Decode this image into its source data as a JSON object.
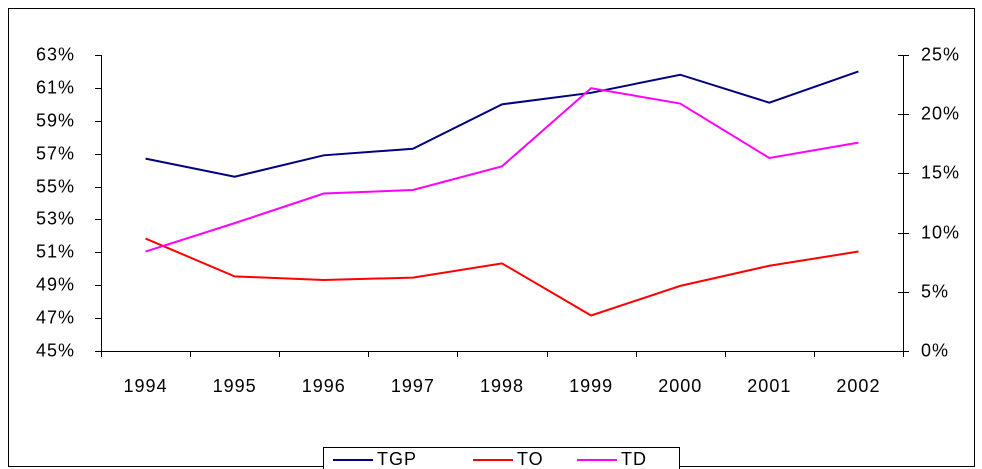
{
  "chart_data": {
    "type": "line",
    "categories": [
      "1994",
      "1995",
      "1996",
      "1997",
      "1998",
      "1999",
      "2000",
      "2001",
      "2002"
    ],
    "series": [
      {
        "name": "TGP",
        "color": "#000080",
        "values": [
          56.7,
          55.6,
          56.9,
          57.3,
          60.0,
          60.7,
          61.8,
          60.1,
          62.0
        ]
      },
      {
        "name": "TO",
        "color": "#ff0000",
        "axis": "y2",
        "values": [
          9.5,
          6.3,
          6.0,
          6.2,
          7.4,
          3.0,
          5.5,
          7.2,
          8.4
        ]
      },
      {
        "name": "TD",
        "color": "#ff00ff",
        "axis": "y2",
        "values": [
          8.4,
          10.8,
          13.3,
          13.6,
          15.6,
          22.2,
          20.9,
          16.3,
          17.6
        ]
      }
    ],
    "ylim": [
      45,
      63
    ],
    "yticks": [
      {
        "value": 45,
        "label": "45%"
      },
      {
        "value": 47,
        "label": "47%"
      },
      {
        "value": 49,
        "label": "49%"
      },
      {
        "value": 51,
        "label": "51%"
      },
      {
        "value": 53,
        "label": "53%"
      },
      {
        "value": 55,
        "label": "55%"
      },
      {
        "value": 57,
        "label": "57%"
      },
      {
        "value": 59,
        "label": "59%"
      },
      {
        "value": 61,
        "label": "61%"
      },
      {
        "value": 63,
        "label": "63%"
      }
    ],
    "y2lim": [
      0,
      25
    ],
    "y2ticks": [
      {
        "value": 0,
        "label": "0%"
      },
      {
        "value": 5,
        "label": "5%"
      },
      {
        "value": 10,
        "label": "10%"
      },
      {
        "value": 15,
        "label": "15%"
      },
      {
        "value": 20,
        "label": "20%"
      },
      {
        "value": 25,
        "label": "25%"
      }
    ],
    "legend": "bottom"
  }
}
